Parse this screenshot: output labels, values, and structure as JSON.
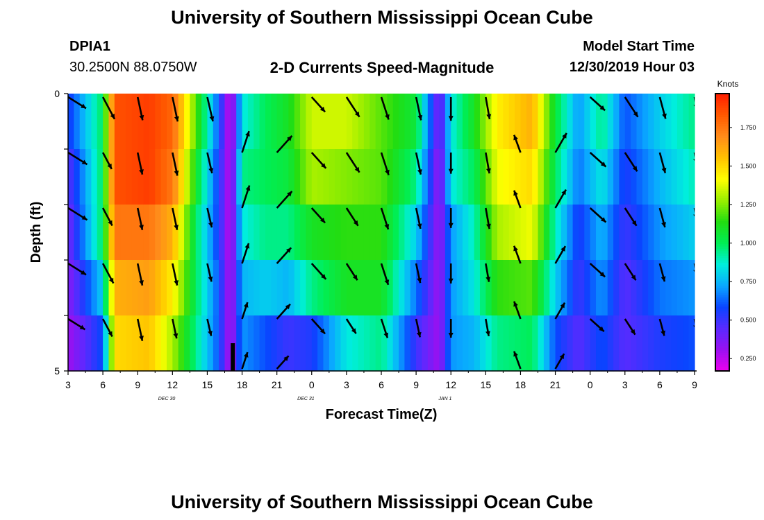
{
  "header": {
    "title": "University of Southern Mississippi Ocean Cube",
    "station_id": "DPIA1",
    "station_coords": "30.2500N 88.0750W",
    "plot_subtitle": "2-D Currents Speed-Magnitude",
    "model_start_label": "Model Start Time",
    "model_start_value": "12/30/2019 Hour 03"
  },
  "footer": {
    "title": "University of Southern Mississippi Ocean Cube"
  },
  "chart_data": {
    "type": "heatmap",
    "xlabel": "Forecast Time(Z)",
    "ylabel": "Depth (ft)",
    "x_tick_labels": [
      "3",
      "6",
      "9",
      "12",
      "15",
      "18",
      "21",
      "0",
      "3",
      "6",
      "9",
      "12",
      "15",
      "18",
      "21",
      "0",
      "3",
      "6",
      "9"
    ],
    "date_labels": [
      {
        "label": "DEC 30",
        "hour_index": 10
      },
      {
        "label": "DEC 31",
        "hour_index": 34
      },
      {
        "label": "JAN 1",
        "hour_index": 58
      }
    ],
    "x_range_hours": [
      0,
      54
    ],
    "y_tick_labels": [
      "0",
      "5"
    ],
    "y_range": [
      0,
      5
    ],
    "colorbar": {
      "unit": "Knots",
      "tick_labels": [
        "1.750",
        "1.500",
        "1.250",
        "1.000",
        "0.750",
        "0.500",
        "0.250"
      ],
      "tick_values": [
        1.75,
        1.5,
        1.25,
        1.0,
        0.75,
        0.5,
        0.25
      ],
      "range": [
        0.17,
        1.97
      ],
      "colors": [
        "#ee00ee",
        "#9a10f0",
        "#5a2aff",
        "#0a44ff",
        "#0aa8ff",
        "#00eedd",
        "#00ee55",
        "#22dd11",
        "#99ee00",
        "#ffff00",
        "#ffc200",
        "#ff8c1a",
        "#ff5a00",
        "#ff1e00"
      ]
    },
    "speed_keyframes": [
      {
        "h": 0,
        "v": [
          0.55,
          0.45,
          0.4,
          0.35,
          0.3,
          0.25
        ]
      },
      {
        "h": 3,
        "v": [
          1.0,
          1.0,
          1.0,
          0.8,
          0.6,
          0.45
        ]
      },
      {
        "h": 4,
        "v": [
          1.85,
          1.85,
          1.75,
          1.6,
          1.5,
          1.45
        ]
      },
      {
        "h": 7,
        "v": [
          1.9,
          1.9,
          1.75,
          1.65,
          1.55,
          1.4
        ]
      },
      {
        "h": 9,
        "v": [
          1.8,
          1.75,
          1.6,
          1.45,
          1.3,
          1.2
        ]
      },
      {
        "h": 11,
        "v": [
          1.2,
          1.1,
          1.0,
          1.0,
          0.95,
          0.95
        ]
      },
      {
        "h": 13,
        "v": [
          0.6,
          0.55,
          0.55,
          0.6,
          0.6,
          0.6
        ]
      },
      {
        "h": 14,
        "v": [
          0.2,
          0.22,
          0.22,
          0.25,
          0.25,
          0.25
        ]
      },
      {
        "h": 15,
        "v": [
          0.85,
          0.95,
          0.85,
          0.75,
          0.7,
          0.55
        ]
      },
      {
        "h": 17,
        "v": [
          1.0,
          1.0,
          0.95,
          0.8,
          0.6,
          0.4
        ]
      },
      {
        "h": 19,
        "v": [
          1.1,
          1.05,
          0.95,
          0.75,
          0.5,
          0.35
        ]
      },
      {
        "h": 21,
        "v": [
          1.35,
          1.3,
          1.1,
          0.95,
          0.55,
          0.4
        ]
      },
      {
        "h": 24,
        "v": [
          1.35,
          1.25,
          1.15,
          1.1,
          0.85,
          0.45
        ]
      },
      {
        "h": 27,
        "v": [
          1.2,
          1.2,
          1.15,
          1.1,
          0.95,
          0.55
        ]
      },
      {
        "h": 30,
        "v": [
          1.05,
          0.95,
          0.8,
          0.65,
          0.5,
          0.35
        ]
      },
      {
        "h": 32,
        "v": [
          0.35,
          0.3,
          0.3,
          0.3,
          0.3,
          0.3
        ]
      },
      {
        "h": 33,
        "v": [
          0.85,
          0.85,
          0.7,
          0.7,
          0.7,
          0.6
        ]
      },
      {
        "h": 35,
        "v": [
          1.1,
          1.0,
          0.9,
          0.85,
          0.75,
          0.55
        ]
      },
      {
        "h": 37,
        "v": [
          1.45,
          1.4,
          1.3,
          1.15,
          0.95,
          0.75
        ]
      },
      {
        "h": 40,
        "v": [
          1.6,
          1.5,
          1.4,
          1.2,
          1.0,
          0.75
        ]
      },
      {
        "h": 42,
        "v": [
          1.05,
          1.0,
          0.9,
          0.8,
          0.6,
          0.5
        ]
      },
      {
        "h": 44,
        "v": [
          0.7,
          0.65,
          0.55,
          0.5,
          0.45,
          0.4
        ]
      },
      {
        "h": 46,
        "v": [
          0.95,
          0.85,
          0.75,
          0.7,
          0.6,
          0.5
        ]
      },
      {
        "h": 48,
        "v": [
          0.6,
          0.55,
          0.5,
          0.45,
          0.45,
          0.4
        ]
      },
      {
        "h": 51,
        "v": [
          0.8,
          0.75,
          0.7,
          0.65,
          0.55,
          0.45
        ]
      },
      {
        "h": 54,
        "v": [
          0.95,
          0.9,
          0.8,
          0.7,
          0.6,
          0.5
        ]
      }
    ],
    "vector_rows_depth": [
      0.1,
      1.1,
      2.1,
      3.1,
      4.1,
      5.0
    ],
    "vectors": [
      {
        "h": 0,
        "dir_deg": 122,
        "len": [
          0.85,
          0.9,
          0.9,
          0.85,
          0.8,
          0.0
        ]
      },
      {
        "h": 3,
        "dir_deg": 152,
        "len": [
          1.0,
          0.75,
          0.8,
          0.9,
          0.8,
          0.0
        ]
      },
      {
        "h": 6,
        "dir_deg": 168,
        "len": [
          0.95,
          0.9,
          0.9,
          0.9,
          0.9,
          0.0
        ]
      },
      {
        "h": 9,
        "dir_deg": 168,
        "len": [
          1.0,
          0.95,
          0.9,
          0.9,
          0.8,
          0.0
        ]
      },
      {
        "h": 12,
        "dir_deg": 167,
        "len": [
          1.0,
          0.85,
          0.8,
          0.75,
          0.7,
          0.0
        ]
      },
      {
        "h": 15,
        "dir_deg": 18,
        "len": [
          0.0,
          0.9,
          0.95,
          0.85,
          0.7,
          0.7
        ]
      },
      {
        "h": 18,
        "dir_deg": 42,
        "len": [
          0.0,
          0.9,
          0.9,
          0.85,
          0.8,
          0.7
        ]
      },
      {
        "h": 21,
        "dir_deg": 138,
        "len": [
          0.8,
          0.85,
          0.8,
          0.85,
          0.8,
          0.0
        ]
      },
      {
        "h": 24,
        "dir_deg": 147,
        "len": [
          0.95,
          0.95,
          0.85,
          0.8,
          0.7,
          0.0
        ]
      },
      {
        "h": 27,
        "dir_deg": 162,
        "len": [
          0.95,
          0.95,
          0.9,
          0.9,
          0.8,
          0.0
        ]
      },
      {
        "h": 30,
        "dir_deg": 168,
        "len": [
          0.95,
          0.9,
          0.85,
          0.8,
          0.75,
          0.0
        ]
      },
      {
        "h": 33,
        "dir_deg": 180,
        "len": [
          0.95,
          0.85,
          0.8,
          0.8,
          0.75,
          0.0
        ]
      },
      {
        "h": 36,
        "dir_deg": 170,
        "len": [
          0.9,
          0.85,
          0.85,
          0.75,
          0.7,
          0.0
        ]
      },
      {
        "h": 39,
        "dir_deg": 340,
        "len": [
          0.0,
          0.75,
          0.75,
          0.75,
          0.75,
          0.75
        ]
      },
      {
        "h": 42,
        "dir_deg": 30,
        "len": [
          0.0,
          0.9,
          0.85,
          0.8,
          0.75,
          0.7
        ]
      },
      {
        "h": 45,
        "dir_deg": 132,
        "len": [
          0.8,
          0.85,
          0.85,
          0.8,
          0.75,
          0.0
        ]
      },
      {
        "h": 48,
        "dir_deg": 147,
        "len": [
          0.95,
          0.9,
          0.85,
          0.8,
          0.75,
          0.0
        ]
      },
      {
        "h": 51,
        "dir_deg": 165,
        "len": [
          0.9,
          0.85,
          0.8,
          0.75,
          0.7,
          0.0
        ]
      },
      {
        "h": 54,
        "dir_deg": 170,
        "len": [
          0.5,
          0.45,
          0.45,
          0.45,
          0.45,
          0.0
        ]
      }
    ],
    "marker": {
      "h": 14.2,
      "depth_from": 4.5,
      "depth_to": 5.0
    }
  }
}
